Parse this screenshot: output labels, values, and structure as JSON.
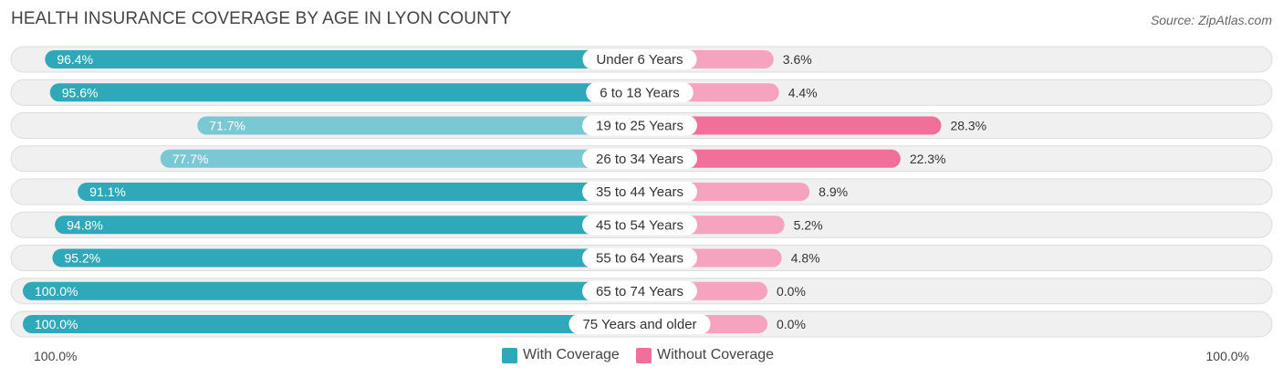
{
  "chart_data": {
    "type": "bar",
    "title": "HEALTH INSURANCE COVERAGE BY AGE IN LYON COUNTY",
    "source": "Source: ZipAtlas.com",
    "categories": [
      "Under 6 Years",
      "6 to 18 Years",
      "19 to 25 Years",
      "26 to 34 Years",
      "35 to 44 Years",
      "45 to 54 Years",
      "55 to 64 Years",
      "65 to 74 Years",
      "75 Years and older"
    ],
    "series": [
      {
        "name": "With Coverage",
        "values": [
          96.4,
          95.6,
          71.7,
          77.7,
          91.1,
          94.8,
          95.2,
          100.0,
          100.0
        ],
        "labels": [
          "96.4%",
          "95.6%",
          "71.7%",
          "77.7%",
          "91.1%",
          "94.8%",
          "95.2%",
          "100.0%",
          "100.0%"
        ]
      },
      {
        "name": "Without Coverage",
        "values": [
          3.6,
          4.4,
          28.3,
          22.3,
          8.9,
          5.2,
          4.8,
          0.0,
          0.0
        ],
        "labels": [
          "3.6%",
          "4.4%",
          "28.3%",
          "22.3%",
          "8.9%",
          "5.2%",
          "4.8%",
          "0.0%",
          "0.0%"
        ]
      }
    ],
    "axis_left_label": "100.0%",
    "axis_right_label": "100.0%",
    "xlim": [
      0,
      100
    ],
    "legend_position": "bottom-center"
  },
  "colors": {
    "with_strong": "#2fa8ba",
    "with_light": "#7ac8d4",
    "without_strong": "#f0709a",
    "without_light": "#f5a3bf"
  }
}
